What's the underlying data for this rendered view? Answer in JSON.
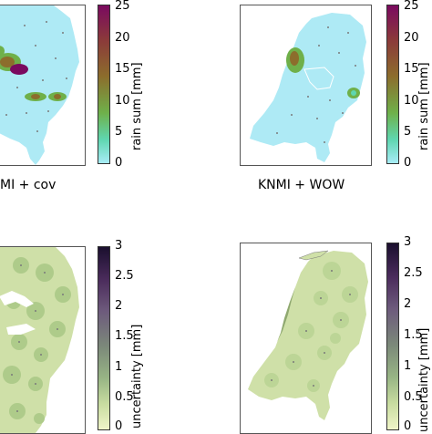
{
  "panels": [
    {
      "title": "MI + cov"
    },
    {
      "title": "KNMI + WOW"
    }
  ],
  "rain_colorbar": {
    "label": "rain sum [mm]",
    "ticks": [
      "25",
      "20",
      "15",
      "10",
      "5",
      "0"
    ],
    "colors": [
      "#7a0a5f",
      "#8b3a3a",
      "#8c6d2c",
      "#6fb04a",
      "#5fd6b0",
      "#a8ecf7"
    ]
  },
  "uncertainty_colorbar": {
    "label": "uncertainty [mm]",
    "ticks": [
      "3",
      "2.5",
      "2",
      "1.5",
      "1",
      "0.5",
      "0"
    ],
    "colors": [
      "#1a0f2e",
      "#4b2c5c",
      "#6d5a7c",
      "#7c8a7a",
      "#98b585",
      "#c8dca0",
      "#f0f5c8"
    ]
  },
  "colors": {
    "rain_base": "#aeeaf5",
    "unc_base": "#cfe0a8",
    "unc_dark": "#aecb8a"
  }
}
